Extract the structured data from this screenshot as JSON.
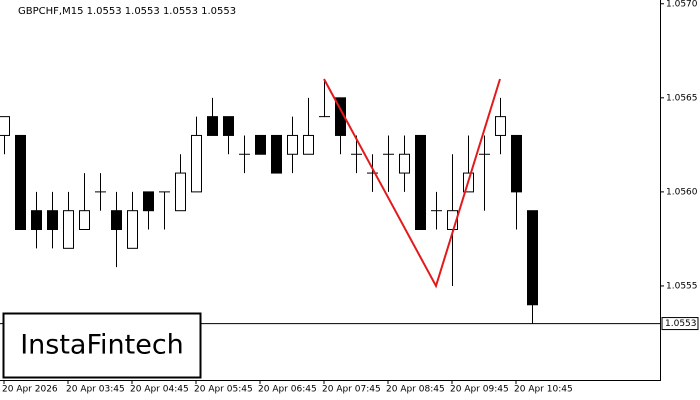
{
  "chart_data": {
    "type": "candlestick",
    "title": "GBPCHF,M15  1.0553 1.0553 1.0553 1.0553",
    "categories": [
      "20 Apr 2026",
      null,
      null,
      null,
      "20 Apr 03:45",
      null,
      null,
      null,
      "20 Apr 04:45",
      null,
      null,
      null,
      "20 Apr 05:45",
      null,
      null,
      null,
      "20 Apr 06:45",
      null,
      null,
      null,
      "20 Apr 07:45",
      null,
      null,
      null,
      "20 Apr 08:45",
      null,
      null,
      null,
      "20 Apr 09:45",
      null,
      null,
      null,
      "20 Apr 10:45",
      null
    ],
    "open": [
      1.0563,
      1.0563,
      1.0559,
      1.0559,
      1.0557,
      1.0558,
      1.056,
      1.0559,
      1.0557,
      1.056,
      1.056,
      1.0559,
      1.056,
      1.0564,
      1.0564,
      1.0562,
      1.0563,
      1.0563,
      1.0562,
      1.0562,
      1.0564,
      1.0565,
      1.0562,
      1.0561,
      1.0562,
      1.0561,
      1.0563,
      1.0559,
      1.0558,
      1.056,
      1.0562,
      1.0563,
      1.0563,
      1.0559
    ],
    "high": [
      1.0564,
      1.0563,
      1.056,
      1.056,
      1.056,
      1.0561,
      1.0561,
      1.056,
      1.056,
      1.056,
      1.056,
      1.0562,
      1.0564,
      1.0565,
      1.0564,
      1.0563,
      1.0563,
      1.0563,
      1.0564,
      1.0565,
      1.0566,
      1.0565,
      1.0563,
      1.0562,
      1.0563,
      1.0563,
      1.0563,
      1.056,
      1.0562,
      1.0563,
      1.0563,
      1.0565,
      1.0563,
      1.0559
    ],
    "low": [
      1.0562,
      1.0558,
      1.0557,
      1.0557,
      1.0557,
      1.0558,
      1.0559,
      1.0556,
      1.0557,
      1.0558,
      1.0558,
      1.0559,
      1.056,
      1.0563,
      1.0562,
      1.0561,
      1.0562,
      1.0561,
      1.0561,
      1.0562,
      1.0564,
      1.0562,
      1.0561,
      1.056,
      1.056,
      1.056,
      1.0558,
      1.0558,
      1.0555,
      1.056,
      1.0559,
      1.0562,
      1.0558,
      1.0553
    ],
    "close": [
      1.0564,
      1.0558,
      1.0558,
      1.0558,
      1.0559,
      1.0559,
      1.056,
      1.0558,
      1.0559,
      1.0559,
      1.056,
      1.0561,
      1.0563,
      1.0563,
      1.0563,
      1.0562,
      1.0562,
      1.0561,
      1.0563,
      1.0563,
      1.0564,
      1.0563,
      1.0562,
      1.0561,
      1.0562,
      1.0562,
      1.0558,
      1.0559,
      1.0559,
      1.0561,
      1.0562,
      1.0564,
      1.056,
      1.0554
    ],
    "ylim": [
      1.055,
      1.05702
    ],
    "yticks": [
      {
        "value": 1.057,
        "label": "1.0570"
      },
      {
        "value": 1.0565,
        "label": "1.0565"
      },
      {
        "value": 1.056,
        "label": "1.0560"
      },
      {
        "value": 1.0555,
        "label": "1.0555"
      }
    ],
    "current_price": 1.0553,
    "pattern": {
      "color": "#e31a1c",
      "x": [
        20,
        27,
        31
      ],
      "y": [
        1.0566,
        1.0555,
        1.0566
      ]
    },
    "logo": "InstaFintech"
  }
}
